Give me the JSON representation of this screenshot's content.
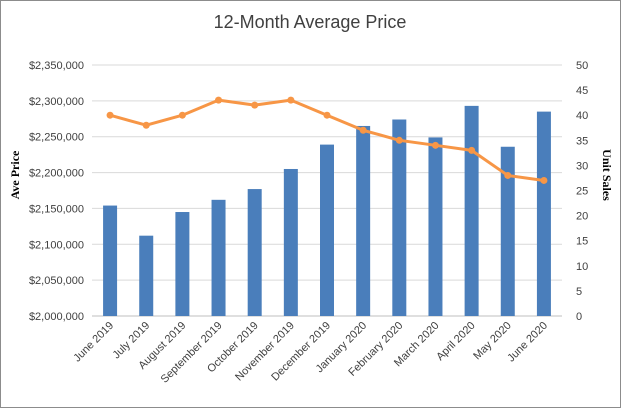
{
  "chart_data": {
    "type": "bar",
    "title": "12-Month Average Price",
    "categories": [
      "June 2019",
      "July 2019",
      "August 2019",
      "September 2019",
      "October 2019",
      "November 2019",
      "December 2019",
      "January 2020",
      "February 2020",
      "March 2020",
      "April 2020",
      "May 2020",
      "June 2020"
    ],
    "series": [
      {
        "type": "bar",
        "axis": "left",
        "color": "#4a7ebb",
        "values": [
          2154000,
          2112000,
          2145000,
          2162000,
          2177000,
          2205000,
          2239000,
          2265000,
          2274000,
          2249000,
          2293000,
          2236000,
          2285000
        ]
      },
      {
        "type": "line",
        "axis": "right",
        "color": "#f79646",
        "values": [
          40,
          38,
          40,
          43,
          42,
          43,
          40,
          37,
          35,
          34,
          33,
          28,
          27
        ]
      }
    ],
    "ylabel": "Ave Price",
    "ylabel_right": "Unit Sales",
    "ylim": [
      2000000,
      2350000
    ],
    "ylim_right": [
      0,
      50
    ],
    "y_ticks": [
      "$2,000,000",
      "$2,050,000",
      "$2,100,000",
      "$2,150,000",
      "$2,200,000",
      "$2,250,000",
      "$2,300,000",
      "$2,350,000"
    ],
    "y_right_ticks": [
      "0",
      "5",
      "10",
      "15",
      "20",
      "25",
      "30",
      "35",
      "40",
      "45",
      "50"
    ],
    "grid": true,
    "legend": "none"
  }
}
